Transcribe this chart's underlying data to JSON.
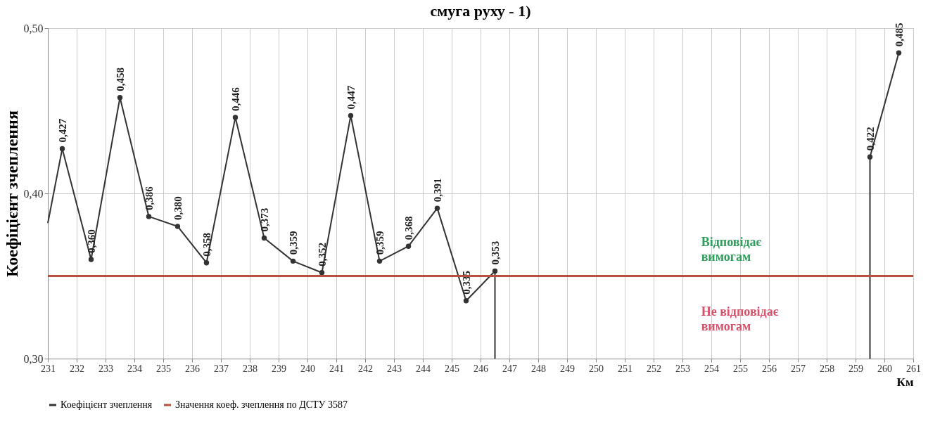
{
  "chart_data": {
    "type": "line",
    "title": "смуга руху - 1)",
    "xlabel": "Км",
    "ylabel": "Коефіцієнт зчеплення",
    "xlim": [
      231,
      261
    ],
    "xticks": [
      231,
      232,
      233,
      234,
      235,
      236,
      237,
      238,
      239,
      240,
      241,
      242,
      243,
      244,
      245,
      246,
      247,
      248,
      249,
      250,
      251,
      252,
      253,
      254,
      255,
      256,
      257,
      258,
      259,
      260,
      261
    ],
    "ylim": [
      0.3,
      0.5
    ],
    "yticks": [
      {
        "value": 0.3,
        "label": "0,30"
      },
      {
        "value": 0.4,
        "label": "0,40"
      },
      {
        "value": 0.5,
        "label": "0,50"
      }
    ],
    "grid": true,
    "legend": "bottom",
    "series": [
      {
        "name": "Коефіцієнт зчеплення",
        "color": "#333333",
        "marker": "circle",
        "x": [
          231.5,
          232.5,
          233.5,
          234.5,
          235.5,
          236.5,
          237.5,
          238.5,
          239.5,
          240.5,
          241.5,
          242.5,
          243.5,
          244.5,
          245.5,
          246.5,
          253,
          259.5,
          260.5
        ],
        "values": [
          0.427,
          0.36,
          0.458,
          0.386,
          0.38,
          0.358,
          0.446,
          0.373,
          0.359,
          0.352,
          0.447,
          0.359,
          0.368,
          0.391,
          0.335,
          0.353,
          null,
          0.422,
          0.485
        ],
        "value_labels": [
          "0,427",
          "0,360",
          "0,458",
          "0,386",
          "0,380",
          "0,358",
          "0,446",
          "0,373",
          "0,359",
          "0,352",
          "0,447",
          "0,359",
          "0,368",
          "0,391",
          "0,335",
          "0,353",
          null,
          "0,422",
          "0,485"
        ]
      },
      {
        "type": "line",
        "color": "#333333",
        "marker": "none",
        "line_style": "solid",
        "x": [
          231,
          231.5
        ],
        "values": [
          0.382,
          0.427
        ]
      },
      {
        "type": "line",
        "color": "#333333",
        "marker": "none",
        "line_style": "solid",
        "x": [
          246.5,
          246.5
        ],
        "values": [
          0.353,
          0.3
        ]
      },
      {
        "type": "line",
        "color": "#333333",
        "marker": "none",
        "line_style": "solid",
        "x": [
          259.5,
          259.5
        ],
        "values": [
          0.3,
          0.422
        ]
      }
    ],
    "ref_lines": [
      {
        "axis": "y",
        "value": 0.35,
        "label": "Значення коеф. зчеплення по ДСТУ 3587",
        "color": "#b5513f"
      }
    ],
    "annotations": [
      "Відповідає вимогам",
      "Не відповідає вимогам"
    ]
  }
}
